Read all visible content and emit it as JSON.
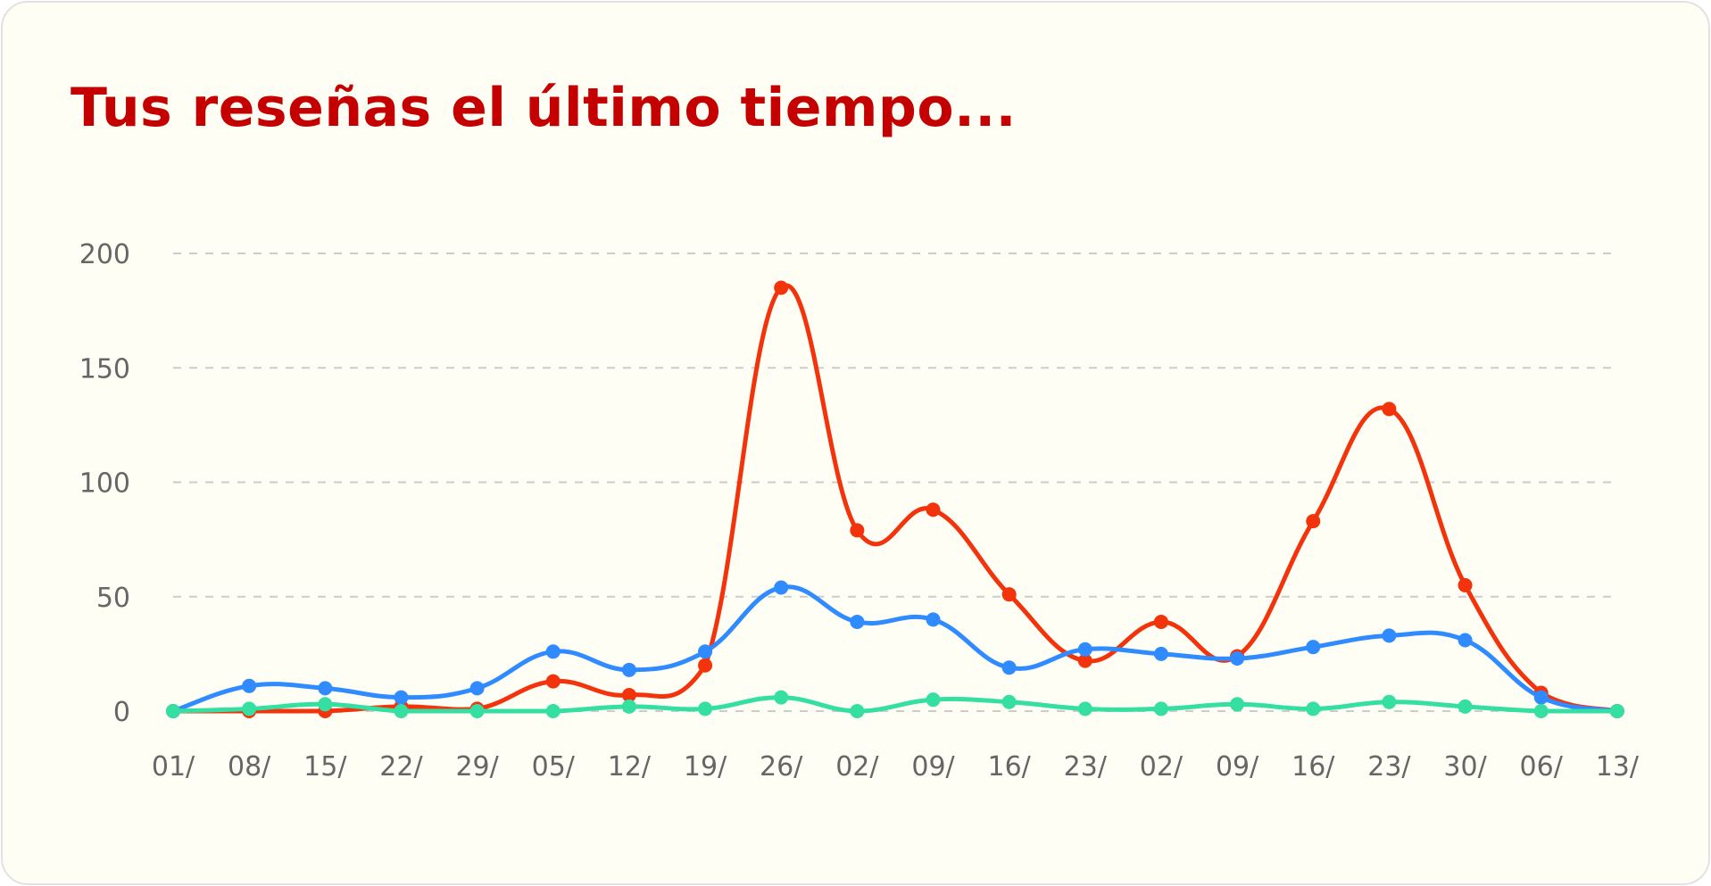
{
  "card": {
    "title": "Tus reseñas el último tiempo..."
  },
  "colors": {
    "title": "#c40000",
    "background": "#fefef5",
    "border": "#e2e2e2",
    "grid": "#cccccc",
    "axis_text": "#666666"
  },
  "chart_data": {
    "type": "line",
    "title": "Tus reseñas el último tiempo...",
    "xlabel": "",
    "ylabel": "",
    "ylim": [
      0,
      200
    ],
    "yticks": [
      0,
      50,
      100,
      150,
      200
    ],
    "grid": true,
    "grid_style": "dashed",
    "legend": null,
    "smooth": true,
    "categories": [
      "01/",
      "08/",
      "15/",
      "22/",
      "29/",
      "05/",
      "12/",
      "19/",
      "26/",
      "02/",
      "09/",
      "16/",
      "23/",
      "02/",
      "09/",
      "16/",
      "23/",
      "30/",
      "06/",
      "13/"
    ],
    "series": [
      {
        "name": "red",
        "color": "#f2330c",
        "values": [
          0,
          0,
          0,
          2,
          1,
          13,
          7,
          20,
          185,
          79,
          88,
          51,
          22,
          39,
          24,
          83,
          132,
          55,
          8,
          0
        ]
      },
      {
        "name": "blue",
        "color": "#2f8bff",
        "values": [
          0,
          11,
          10,
          6,
          10,
          26,
          18,
          26,
          54,
          39,
          40,
          19,
          27,
          25,
          23,
          28,
          33,
          31,
          6,
          0
        ]
      },
      {
        "name": "green",
        "color": "#34dfa1",
        "values": [
          0,
          1,
          3,
          0,
          0,
          0,
          2,
          1,
          6,
          0,
          5,
          4,
          1,
          1,
          3,
          1,
          4,
          2,
          0,
          0
        ]
      }
    ]
  }
}
